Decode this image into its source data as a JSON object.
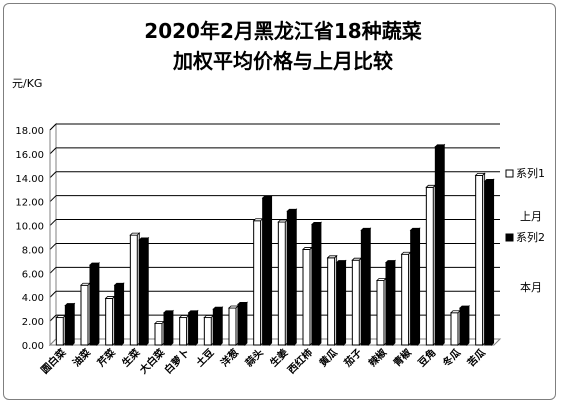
{
  "chart_data": {
    "type": "bar",
    "title": "2020年2月黑龙江省18种蔬菜",
    "subtitle": "加权平均价格与上月比较",
    "ylabel": "元/KG",
    "ylim": [
      0,
      18
    ],
    "yticks": [
      "0.00",
      "2.00",
      "4.00",
      "6.00",
      "8.00",
      "10.00",
      "12.00",
      "14.00",
      "16.00",
      "18.00"
    ],
    "grid": true,
    "legend_position": "right",
    "categories": [
      "圆白菜",
      "油菜",
      "芹菜",
      "生菜",
      "大白菜",
      "白萝卜",
      "土豆",
      "洋葱",
      "蒜头",
      "生姜",
      "西红柿",
      "黄瓜",
      "茄子",
      "辣椒",
      "青椒",
      "豆角",
      "冬瓜",
      "苦瓜"
    ],
    "series": [
      {
        "name": "系列1",
        "color": "#ffffff",
        "values": [
          2.3,
          5.0,
          3.9,
          9.2,
          1.8,
          2.3,
          2.3,
          3.1,
          10.4,
          10.3,
          8.0,
          7.3,
          7.1,
          5.4,
          7.6,
          13.2,
          2.7,
          14.2
        ]
      },
      {
        "name": "系列2",
        "color": "#000000",
        "values": [
          3.3,
          6.7,
          5.0,
          8.8,
          2.7,
          2.7,
          3.0,
          3.4,
          12.3,
          11.2,
          10.1,
          6.9,
          9.6,
          6.9,
          9.6,
          16.6,
          3.1,
          13.7
        ]
      }
    ],
    "legend_notes": [
      "上月",
      "本月"
    ]
  }
}
